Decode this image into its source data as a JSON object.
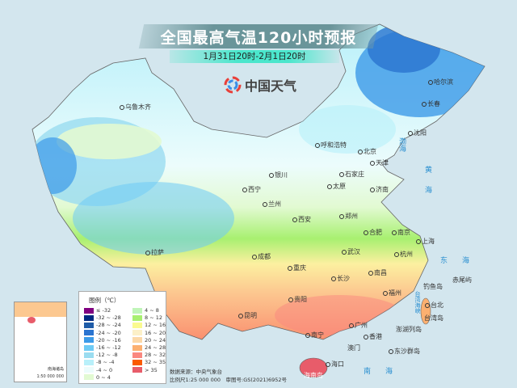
{
  "header": {
    "title": "全国最高气温120小时预报",
    "subtitle": "1月31日20时-2月1日20时",
    "logo_text": "中国天气",
    "logo_icon": "china-weather-swirl-logo"
  },
  "cities": [
    "乌鲁木齐",
    "拉萨",
    "西宁",
    "兰州",
    "银川",
    "呼和浩特",
    "北京",
    "天津",
    "石家庄",
    "太原",
    "济南",
    "郑州",
    "西安",
    "成都",
    "重庆",
    "贵阳",
    "昆明",
    "武汉",
    "长沙",
    "南昌",
    "合肥",
    "南京",
    "上海",
    "杭州",
    "福州",
    "台北",
    "广州",
    "香港",
    "澳门",
    "南宁",
    "海口",
    "哈尔滨",
    "长春",
    "沈阳"
  ],
  "places": [
    "台湾岛",
    "澎湖列岛",
    "钓鱼岛",
    "赤尾屿",
    "东沙群岛",
    "海南岛"
  ],
  "seas": [
    "渤海",
    "黄海",
    "东海",
    "台湾海峡",
    "南海"
  ],
  "legend": {
    "title": "图例（℃）",
    "items": [
      {
        "label": "≤ -32",
        "color": "#800080"
      },
      {
        "label": "-32 ~ -28",
        "color": "#002a80"
      },
      {
        "label": "-28 ~ -24",
        "color": "#1f5ca8"
      },
      {
        "label": "-24 ~ -20",
        "color": "#2b74d0"
      },
      {
        "label": "-20 ~ -16",
        "color": "#3c9ae8"
      },
      {
        "label": "-16 ~ -12",
        "color": "#6ecbf5"
      },
      {
        "label": "-12 ~ -8",
        "color": "#9adcf0"
      },
      {
        "label": "-8 ~ -4",
        "color": "#b8f0fa"
      },
      {
        "label": "-4 ~ 0",
        "color": "#ecfcfc"
      },
      {
        "label": "0 ~ 4",
        "color": "#e2fad2"
      },
      {
        "label": "4 ~ 8",
        "color": "#c0f5b8"
      },
      {
        "label": "8 ~ 12",
        "color": "#a8f070"
      },
      {
        "label": "12 ~ 16",
        "color": "#fafa90"
      },
      {
        "label": "16 ~ 20",
        "color": "#fcf0c8"
      },
      {
        "label": "20 ~ 24",
        "color": "#fcd8a8"
      },
      {
        "label": "24 ~ 28",
        "color": "#fcb070"
      },
      {
        "label": "28 ~ 32",
        "color": "#fa8880"
      },
      {
        "label": "32 ~ 35",
        "color": "#fa5a00"
      },
      {
        "label": "> 35",
        "color": "#e85c6a"
      }
    ]
  },
  "inset": {
    "label": "南海诸岛",
    "scale": "1:50 000 000"
  },
  "footer": {
    "source": "数据来源：中央气象台",
    "scale": "比例尺1:25 000 000　审图号:GS(2021)6952号"
  }
}
